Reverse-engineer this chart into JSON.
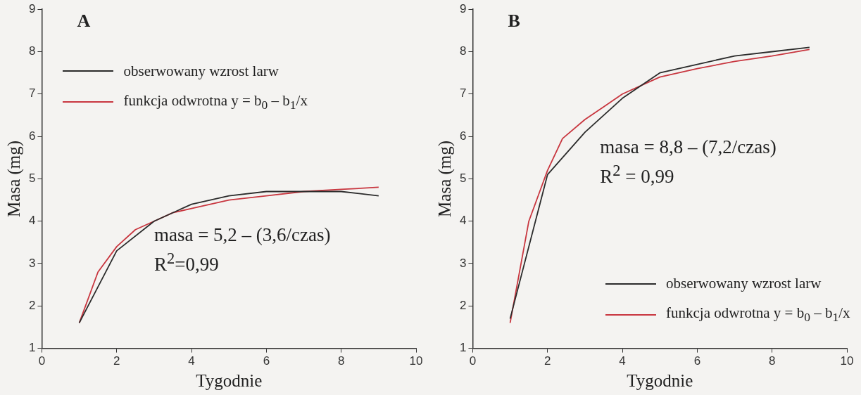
{
  "chart_data": [
    {
      "type": "line",
      "title": "A",
      "xlabel": "Tygodnie",
      "ylabel": "Masa (mg)",
      "xlim": [
        0,
        10
      ],
      "xticks": [
        0,
        2,
        4,
        6,
        8,
        10
      ],
      "ylim": [
        1,
        9
      ],
      "yticks": [
        1,
        2,
        3,
        4,
        5,
        6,
        7,
        8,
        9
      ],
      "grid": false,
      "legend": "top left",
      "marker": "none",
      "line_style": "solid",
      "series": [
        {
          "name": "obserwowany wzrost larw",
          "color": "#2b2b2b",
          "x": [
            1,
            2,
            3,
            4,
            5,
            6,
            7,
            8,
            9
          ],
          "values": [
            1.6,
            3.3,
            4.0,
            4.4,
            4.6,
            4.7,
            4.7,
            4.7,
            4.6
          ]
        },
        {
          "name": "funkcja odwrotna y = b$_{0}$ – b$_{1}$/x",
          "color": "#c8363f",
          "x": [
            1,
            1.5,
            2,
            2.5,
            3,
            3.5,
            4,
            5,
            6,
            7,
            8,
            9
          ],
          "values": [
            1.6,
            2.8,
            3.4,
            3.8,
            4.0,
            4.2,
            4.3,
            4.5,
            4.6,
            4.7,
            4.75,
            4.8
          ]
        }
      ],
      "annotations": [
        "masa = 5,2 – (3,6/czas)",
        "R$^{2}$=0,99"
      ]
    },
    {
      "type": "line",
      "title": "B",
      "xlabel": "Tygodnie",
      "ylabel": "Masa (mg)",
      "xlim": [
        0,
        10
      ],
      "xticks": [
        0,
        2,
        4,
        6,
        8,
        10
      ],
      "ylim": [
        1,
        9
      ],
      "yticks": [
        1,
        2,
        3,
        4,
        5,
        6,
        7,
        8,
        9
      ],
      "grid": false,
      "legend": "bottom right",
      "marker": "none",
      "line_style": "solid",
      "series": [
        {
          "name": "obserwowany wzrost larw",
          "color": "#2b2b2b",
          "x": [
            1,
            2,
            3,
            4,
            5,
            6,
            7,
            8,
            9
          ],
          "values": [
            1.7,
            5.1,
            6.1,
            6.9,
            7.5,
            7.7,
            7.9,
            8.0,
            8.1
          ]
        },
        {
          "name": "funkcja odwrotna y = b$_{0}$ – b$_{1}$/x",
          "color": "#c8363f",
          "x": [
            1,
            1.5,
            2,
            2.4,
            3,
            3.5,
            4,
            5,
            6,
            7,
            8,
            9
          ],
          "values": [
            1.6,
            4.0,
            5.2,
            5.95,
            6.4,
            6.7,
            7.0,
            7.4,
            7.6,
            7.77,
            7.9,
            8.05
          ]
        }
      ],
      "annotations": [
        "masa = 8,8 – (7,2/czas)",
        "R$^{2}$ = 0,99"
      ]
    }
  ]
}
